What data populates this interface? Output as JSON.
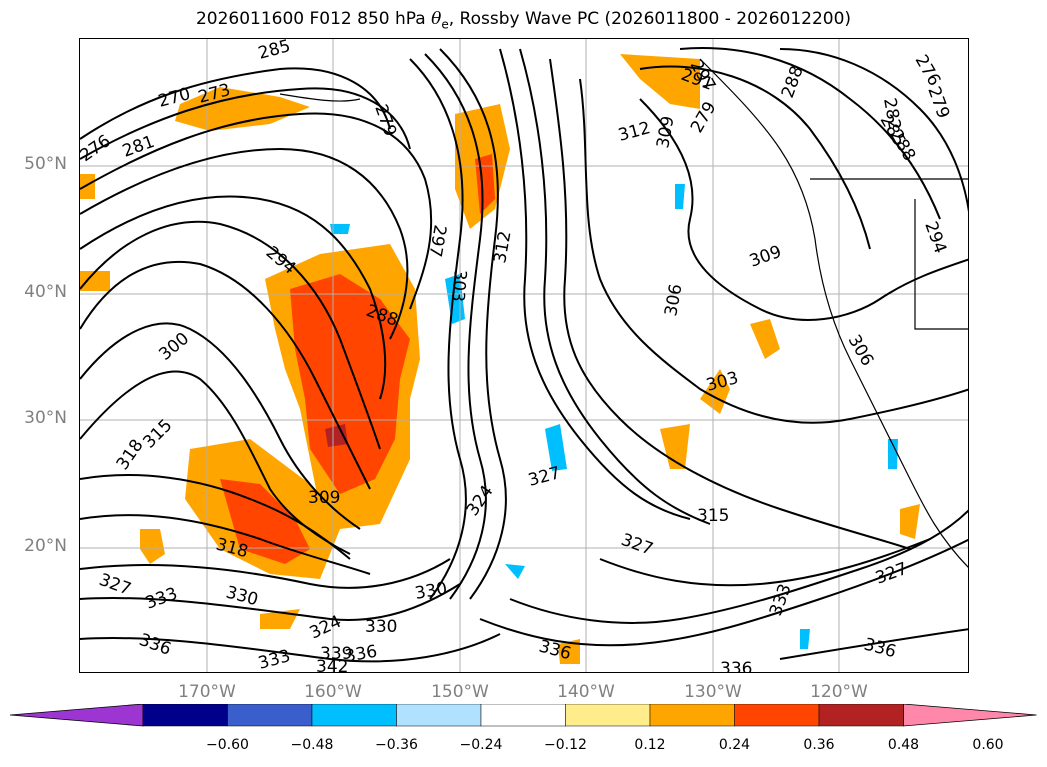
{
  "title_parts": {
    "prefix": "2026011600 F012 850 hPa ",
    "symbol": "θ",
    "subscript": "e",
    "suffix": ", Rossby Wave PC (2026011800 - 2026012200)"
  },
  "lat_labels": [
    "50°N",
    "40°N",
    "30°N",
    "20°N"
  ],
  "lon_labels": [
    "170°W",
    "160°W",
    "150°W",
    "140°W",
    "130°W",
    "120°W"
  ],
  "colorbar": {
    "ticks": [
      "−0.60",
      "−0.48",
      "−0.36",
      "−0.24",
      "−0.12",
      "0.12",
      "0.24",
      "0.36",
      "0.48",
      "0.60"
    ],
    "colors": [
      "#9c35d1",
      "#00008b",
      "#3a5fcd",
      "#00bfff",
      "#b0e2ff",
      "#ffffff",
      "#ffec8b",
      "#ffa500",
      "#ff4500",
      "#b22222",
      "#ff88aa"
    ]
  },
  "contour_labels": [
    {
      "text": "285"
    },
    {
      "text": "270"
    },
    {
      "text": "273"
    },
    {
      "text": "279"
    },
    {
      "text": "276"
    },
    {
      "text": "281"
    },
    {
      "text": "294"
    },
    {
      "text": "288"
    },
    {
      "text": "297"
    },
    {
      "text": "303"
    },
    {
      "text": "312"
    },
    {
      "text": "300"
    },
    {
      "text": "315"
    },
    {
      "text": "318"
    },
    {
      "text": "309"
    },
    {
      "text": "324"
    },
    {
      "text": "327"
    },
    {
      "text": "318"
    },
    {
      "text": "327"
    },
    {
      "text": "333"
    },
    {
      "text": "330"
    },
    {
      "text": "336"
    },
    {
      "text": "324"
    },
    {
      "text": "330"
    },
    {
      "text": "330"
    },
    {
      "text": "333"
    },
    {
      "text": "339"
    },
    {
      "text": "342"
    },
    {
      "text": "336"
    },
    {
      "text": "336"
    },
    {
      "text": "336"
    },
    {
      "text": "315"
    },
    {
      "text": "327"
    },
    {
      "text": "303"
    },
    {
      "text": "306"
    },
    {
      "text": "309"
    },
    {
      "text": "306"
    },
    {
      "text": "333"
    },
    {
      "text": "336"
    },
    {
      "text": "312"
    },
    {
      "text": "309"
    },
    {
      "text": "291"
    },
    {
      "text": "279"
    },
    {
      "text": "288"
    },
    {
      "text": "282"
    },
    {
      "text": "285"
    },
    {
      "text": "288"
    },
    {
      "text": "294"
    },
    {
      "text": "279"
    },
    {
      "text": "276"
    },
    {
      "text": "297"
    },
    {
      "text": "327"
    }
  ]
}
